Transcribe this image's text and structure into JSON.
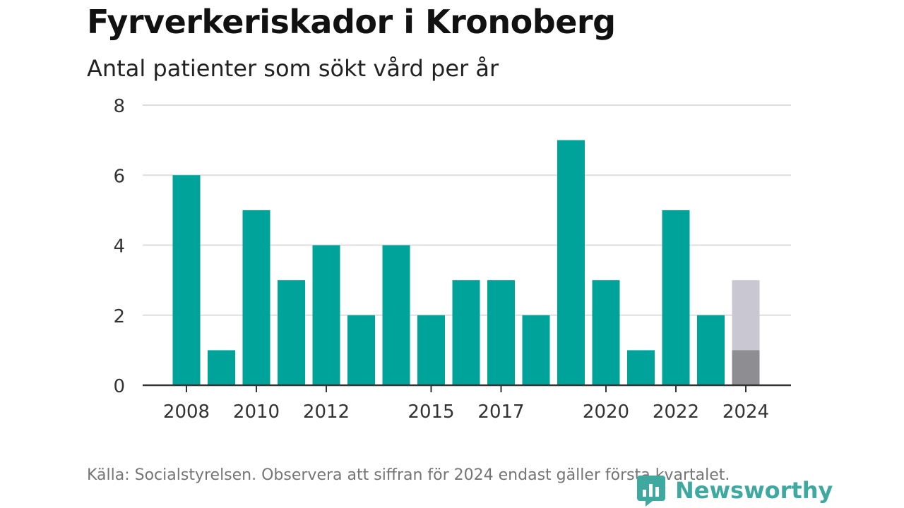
{
  "header": {
    "title": "Fyrverkeriskador i Kronoberg",
    "subtitle": "Antal patienter som sökt vård per år"
  },
  "footer": {
    "source": "Källa: Socialstyrelsen. Observera att siffran för 2024 endast gäller första kvartalet."
  },
  "brand": {
    "name": "Newsworthy"
  },
  "chart_data": {
    "type": "bar",
    "title": "Fyrverkeriskador i Kronoberg",
    "subtitle": "Antal patienter som sökt vård per år",
    "categories": [
      2008,
      2009,
      2010,
      2011,
      2012,
      2013,
      2014,
      2015,
      2016,
      2017,
      2018,
      2019,
      2020,
      2021,
      2022,
      2023,
      2024
    ],
    "values": [
      6,
      1,
      5,
      3,
      4,
      2,
      4,
      2,
      3,
      3,
      2,
      7,
      3,
      1,
      5,
      2,
      1
    ],
    "projection": {
      "category": 2024,
      "value": 3
    },
    "xtick_labels": [
      2008,
      2010,
      2012,
      2015,
      2017,
      2020,
      2022,
      2024
    ],
    "yticks": [
      0,
      2,
      4,
      6,
      8
    ],
    "ylim": [
      0,
      8
    ],
    "grid": true,
    "colors": {
      "bar": "#00a39a",
      "partial_actual": "#8e8e92",
      "partial_projection": "#c9c7d2",
      "grid": "#dddddd",
      "axis": "#333333"
    }
  }
}
